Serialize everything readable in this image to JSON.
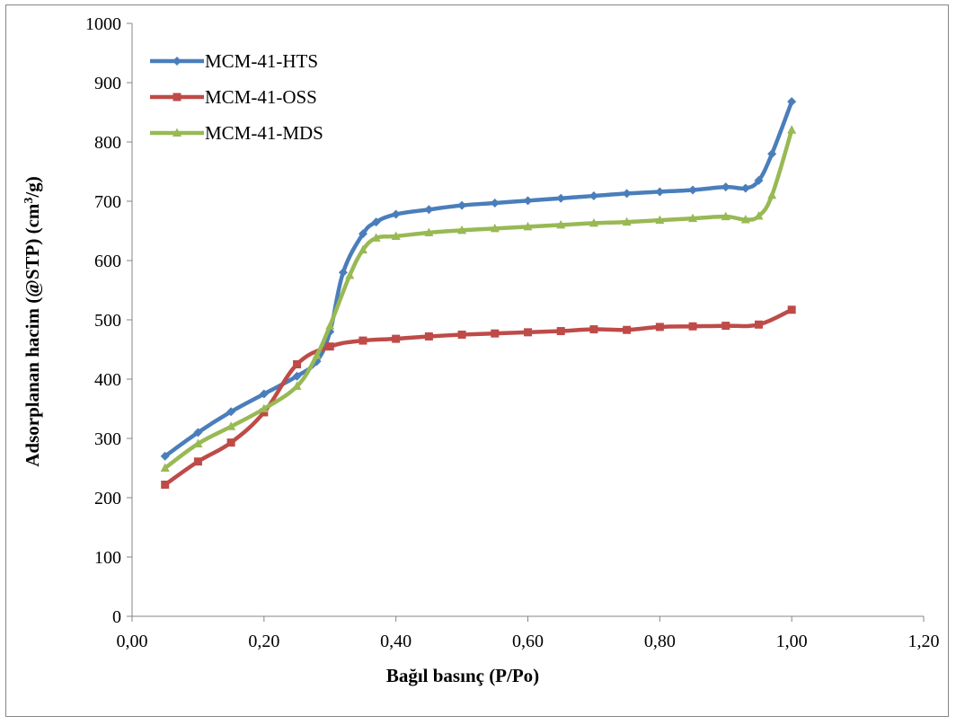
{
  "chart_data": {
    "type": "line",
    "xlabel": "Bağıl basınç (P/Po)",
    "ylabel_parts": [
      "Adsorplanan hacim (@STP) (cm",
      "3",
      "/g)"
    ],
    "xlim": [
      0,
      1.2
    ],
    "ylim": [
      0,
      1000
    ],
    "x_ticks": [
      "0,00",
      "0,20",
      "0,40",
      "0,60",
      "0,80",
      "1,00",
      "1,20"
    ],
    "y_ticks": [
      "0",
      "100",
      "200",
      "300",
      "400",
      "500",
      "600",
      "700",
      "800",
      "900",
      "1000"
    ],
    "grid": false,
    "legend_position": "top-left",
    "series": [
      {
        "name": "MCM-41-HTS",
        "color": "#4a7ebb",
        "marker": "diamond",
        "points": [
          [
            0.05,
            270
          ],
          [
            0.1,
            310
          ],
          [
            0.15,
            345
          ],
          [
            0.2,
            375
          ],
          [
            0.25,
            405
          ],
          [
            0.28,
            430
          ],
          [
            0.3,
            480
          ],
          [
            0.32,
            580
          ],
          [
            0.35,
            645
          ],
          [
            0.37,
            665
          ],
          [
            0.4,
            678
          ],
          [
            0.45,
            686
          ],
          [
            0.5,
            693
          ],
          [
            0.55,
            697
          ],
          [
            0.6,
            701
          ],
          [
            0.65,
            705
          ],
          [
            0.7,
            709
          ],
          [
            0.75,
            713
          ],
          [
            0.8,
            716
          ],
          [
            0.85,
            719
          ],
          [
            0.9,
            724
          ],
          [
            0.93,
            722
          ],
          [
            0.95,
            735
          ],
          [
            0.97,
            780
          ],
          [
            1.0,
            868
          ]
        ]
      },
      {
        "name": "MCM-41-OSS",
        "color": "#be4b48",
        "marker": "square",
        "points": [
          [
            0.05,
            222
          ],
          [
            0.1,
            261
          ],
          [
            0.15,
            293
          ],
          [
            0.2,
            344
          ],
          [
            0.25,
            425
          ],
          [
            0.3,
            455
          ],
          [
            0.35,
            465
          ],
          [
            0.4,
            468
          ],
          [
            0.45,
            472
          ],
          [
            0.5,
            475
          ],
          [
            0.55,
            477
          ],
          [
            0.6,
            479
          ],
          [
            0.65,
            481
          ],
          [
            0.7,
            484
          ],
          [
            0.75,
            483
          ],
          [
            0.8,
            488
          ],
          [
            0.85,
            489
          ],
          [
            0.9,
            490
          ],
          [
            0.95,
            492
          ],
          [
            1.0,
            517
          ]
        ]
      },
      {
        "name": "MCM-41-MDS",
        "color": "#98b954",
        "marker": "triangle",
        "points": [
          [
            0.05,
            250
          ],
          [
            0.1,
            291
          ],
          [
            0.15,
            320
          ],
          [
            0.2,
            350
          ],
          [
            0.25,
            388
          ],
          [
            0.28,
            440
          ],
          [
            0.3,
            490
          ],
          [
            0.33,
            575
          ],
          [
            0.35,
            618
          ],
          [
            0.37,
            638
          ],
          [
            0.4,
            641
          ],
          [
            0.45,
            647
          ],
          [
            0.5,
            651
          ],
          [
            0.55,
            654
          ],
          [
            0.6,
            657
          ],
          [
            0.65,
            660
          ],
          [
            0.7,
            663
          ],
          [
            0.75,
            665
          ],
          [
            0.8,
            668
          ],
          [
            0.85,
            671
          ],
          [
            0.9,
            674
          ],
          [
            0.93,
            669
          ],
          [
            0.95,
            675
          ],
          [
            0.97,
            710
          ],
          [
            1.0,
            820
          ]
        ]
      }
    ]
  }
}
